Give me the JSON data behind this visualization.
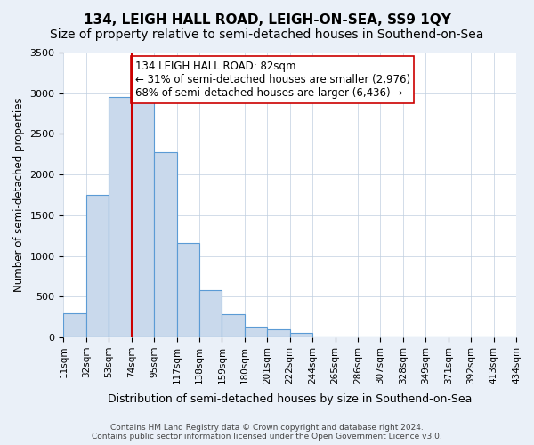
{
  "title": "134, LEIGH HALL ROAD, LEIGH-ON-SEA, SS9 1QY",
  "subtitle": "Size of property relative to semi-detached houses in Southend-on-Sea",
  "xlabel": "Distribution of semi-detached houses by size in Southend-on-Sea",
  "ylabel": "Number of semi-detached properties",
  "footer": "Contains HM Land Registry data © Crown copyright and database right 2024.\nContains public sector information licensed under the Open Government Licence v3.0.",
  "tick_labels": [
    "11sqm",
    "32sqm",
    "53sqm",
    "74sqm",
    "95sqm",
    "117sqm",
    "138sqm",
    "159sqm",
    "180sqm",
    "201sqm",
    "222sqm",
    "244sqm",
    "265sqm",
    "286sqm",
    "307sqm",
    "328sqm",
    "349sqm",
    "371sqm",
    "392sqm",
    "413sqm",
    "434sqm"
  ],
  "bar_values": [
    300,
    1750,
    2950,
    2950,
    2280,
    1160,
    580,
    280,
    130,
    100,
    60,
    0,
    0,
    0,
    0,
    0,
    0,
    0,
    0,
    0
  ],
  "bar_color": "#c9d9ec",
  "bar_edge_color": "#5b9bd5",
  "vline_x": 3,
  "vline_color": "#cc0000",
  "annotation_text": "134 LEIGH HALL ROAD: 82sqm\n← 31% of semi-detached houses are smaller (2,976)\n68% of semi-detached houses are larger (6,436) →",
  "annotation_box_color": "#ffffff",
  "annotation_box_edge": "#cc0000",
  "ylim": [
    0,
    3500
  ],
  "yticks": [
    0,
    500,
    1000,
    1500,
    2000,
    2500,
    3000,
    3500
  ],
  "bg_color": "#eaf0f8",
  "plot_bg_color": "#ffffff",
  "title_fontsize": 11,
  "subtitle_fontsize": 10,
  "annotation_fontsize": 8.5
}
